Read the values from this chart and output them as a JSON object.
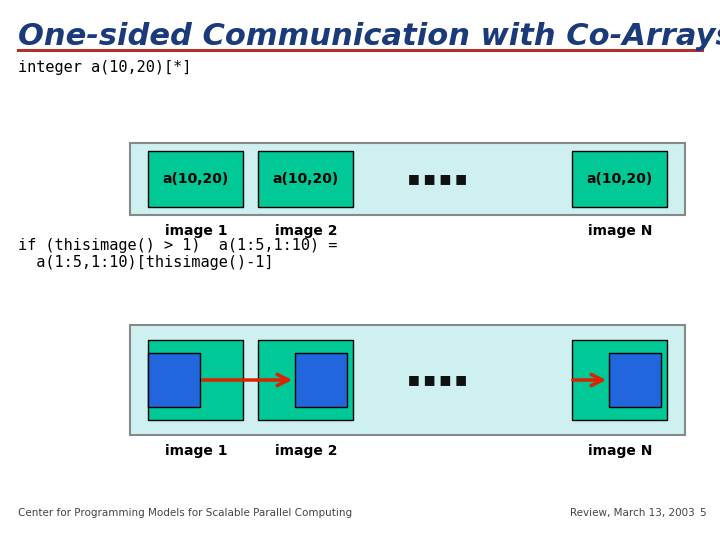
{
  "title": "One-sided Communication with Co-Arrays",
  "title_color": "#1a3a7a",
  "title_fontsize": 22,
  "bg_color": "#ffffff",
  "line_color": "#b03030",
  "code1": "integer a(10,20)[*]",
  "code2_line1": "if (thisimage() > 1)  a(1:5,1:10) =",
  "code2_line2": "  a(1:5,1:10)[thisimage()-1]",
  "box1_bg": "#cef0f0",
  "box2_bg": "#cef0f0",
  "cell_color": "#00c896",
  "cell_text": "a(10,20)",
  "dots_color": "#111111",
  "label_color": "#000000",
  "arrow_color": "#dd2200",
  "blue_rect_color": "#2266dd",
  "image_labels": [
    "image 1",
    "image 2",
    "image N"
  ],
  "footer_left": "Center for Programming Models for Scalable Parallel Computing",
  "footer_right": "Review, March 13, 2003",
  "footer_num": "5",
  "code_fontsize": 11,
  "label_fontsize": 10
}
